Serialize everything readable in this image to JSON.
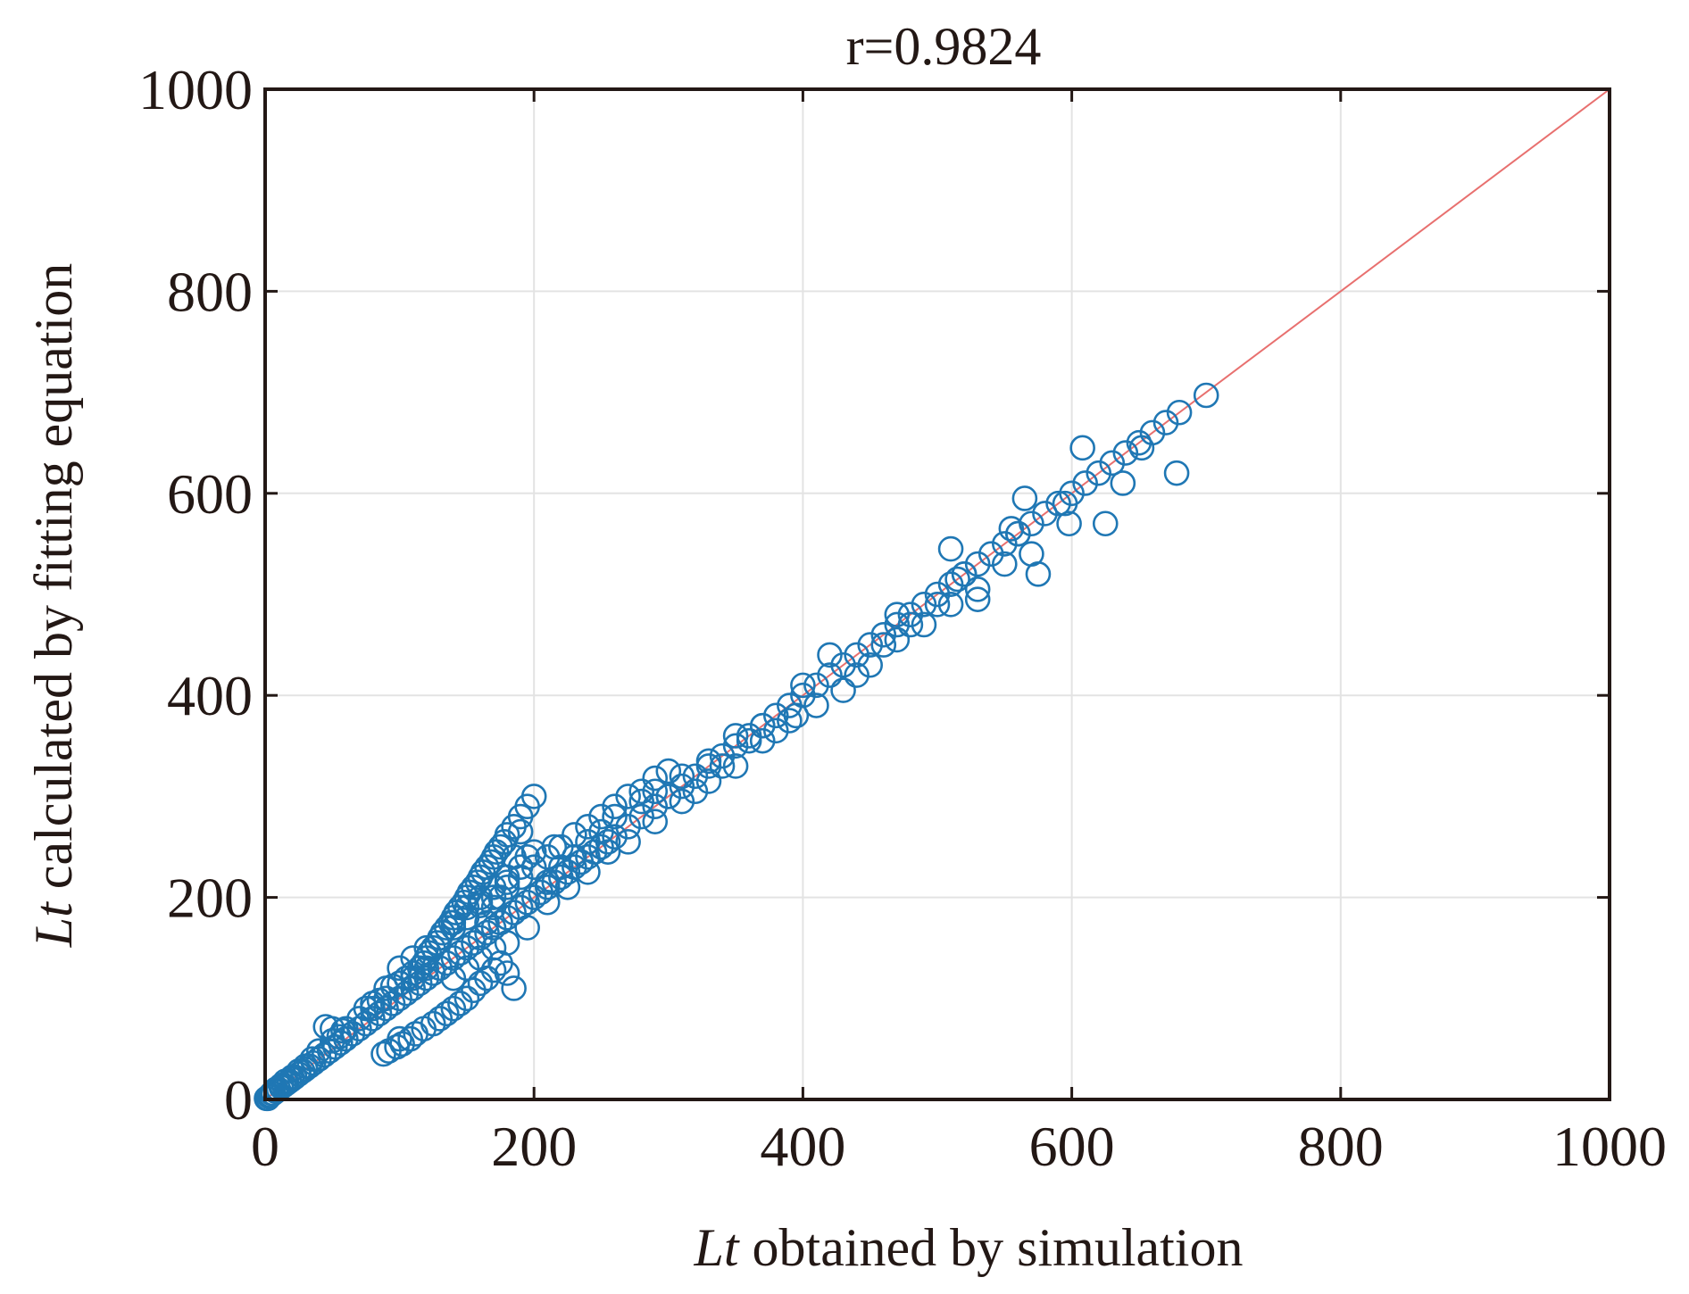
{
  "chart_data": {
    "type": "scatter",
    "title": "r=0.9824",
    "xlabel_var": "Lt",
    "xlabel_text": " obtained by simulation",
    "ylabel_var": "Lt",
    "ylabel_text": " calculated by fitting equation",
    "xlim": [
      0,
      1000
    ],
    "ylim": [
      0,
      1000
    ],
    "xticks": [
      "0",
      "200",
      "400",
      "600",
      "800",
      "1000"
    ],
    "yticks": [
      "0",
      "200",
      "400",
      "600",
      "800",
      "1000"
    ],
    "grid": true,
    "legend": "none",
    "colors": {
      "points": "#1f77b4",
      "fit_line": "#e8706f",
      "axes": "#231815"
    },
    "reference_line": {
      "x": [
        0,
        1000
      ],
      "y": [
        0,
        1000
      ]
    },
    "series": [
      {
        "marker": "open-circle",
        "x": [
          2,
          4,
          6,
          8,
          10,
          12,
          14,
          16,
          18,
          20,
          22,
          25,
          28,
          30,
          33,
          36,
          40,
          44,
          48,
          52,
          56,
          60,
          65,
          70,
          75,
          80,
          85,
          90,
          95,
          100,
          105,
          110,
          115,
          120,
          125,
          130,
          135,
          140,
          145,
          150,
          155,
          160,
          165,
          170,
          175,
          180,
          185,
          190,
          195,
          200,
          205,
          210,
          215,
          220,
          225,
          230,
          235,
          240,
          245,
          250,
          255,
          260,
          270,
          280,
          290,
          300,
          310,
          320,
          330,
          340,
          350,
          360,
          370,
          380,
          390,
          400,
          410,
          420,
          430,
          440,
          450,
          460,
          470,
          480,
          490,
          500,
          510,
          520,
          530,
          540,
          550,
          560,
          570,
          580,
          590,
          600,
          610,
          620,
          630,
          640,
          650,
          660,
          670,
          680,
          700,
          45,
          50,
          58,
          75,
          80,
          85,
          90,
          95,
          100,
          100,
          105,
          110,
          115,
          118,
          120,
          122,
          125,
          128,
          130,
          132,
          135,
          138,
          140,
          142,
          145,
          148,
          150,
          152,
          155,
          158,
          160,
          162,
          165,
          168,
          170,
          172,
          175,
          178,
          180,
          185,
          190,
          195,
          200,
          88,
          92,
          98,
          102,
          108,
          112,
          118,
          125,
          130,
          135,
          140,
          145,
          150,
          155,
          160,
          165,
          170,
          175,
          180,
          185,
          160,
          165,
          170,
          175,
          180,
          185,
          190,
          195,
          210,
          215,
          220,
          230,
          240,
          250,
          260,
          280,
          290,
          300,
          310,
          320,
          330,
          340,
          350,
          360,
          370,
          380,
          395,
          400,
          420,
          440,
          460,
          470,
          480,
          500,
          510,
          515,
          520,
          530,
          550,
          555,
          560,
          565,
          570,
          575,
          595,
          598,
          608,
          625,
          638,
          652,
          678,
          130,
          140,
          150,
          160,
          170,
          180,
          190,
          200,
          120,
          110,
          100,
          90,
          80,
          70,
          60,
          55,
          50,
          40,
          35,
          30,
          25,
          20,
          15,
          12,
          8,
          5,
          3,
          1,
          140,
          150,
          160,
          170,
          180,
          195,
          210,
          225,
          240,
          255,
          270,
          290,
          310,
          330,
          350,
          370,
          390,
          410,
          430,
          450,
          470,
          490,
          510,
          530,
          100,
          110,
          120,
          130,
          140,
          150,
          160,
          170,
          180,
          190,
          200,
          210,
          220,
          230,
          240,
          250,
          260,
          270,
          280,
          290,
          300
        ],
        "y": [
          1,
          4,
          6,
          8,
          10,
          12,
          14,
          16,
          18,
          20,
          22,
          25,
          28,
          30,
          33,
          36,
          40,
          44,
          48,
          52,
          56,
          60,
          65,
          70,
          75,
          80,
          85,
          90,
          95,
          100,
          105,
          110,
          115,
          120,
          125,
          130,
          135,
          140,
          145,
          150,
          155,
          160,
          165,
          170,
          175,
          180,
          185,
          190,
          195,
          200,
          205,
          210,
          215,
          220,
          225,
          230,
          235,
          240,
          245,
          250,
          255,
          260,
          270,
          280,
          290,
          300,
          310,
          320,
          330,
          340,
          350,
          360,
          370,
          380,
          390,
          400,
          410,
          420,
          430,
          440,
          450,
          460,
          470,
          480,
          490,
          500,
          510,
          520,
          530,
          540,
          550,
          560,
          570,
          580,
          590,
          600,
          610,
          620,
          630,
          640,
          650,
          660,
          670,
          680,
          697,
          72,
          70,
          68,
          90,
          95,
          98,
          110,
          112,
          115,
          60,
          120,
          125,
          130,
          135,
          140,
          145,
          150,
          155,
          160,
          165,
          170,
          175,
          180,
          185,
          190,
          195,
          200,
          205,
          210,
          215,
          220,
          225,
          230,
          235,
          240,
          245,
          250,
          255,
          262,
          270,
          280,
          290,
          300,
          45,
          48,
          52,
          55,
          60,
          65,
          70,
          75,
          80,
          85,
          90,
          95,
          100,
          108,
          115,
          120,
          128,
          135,
          125,
          110,
          195,
          175,
          190,
          200,
          215,
          240,
          265,
          240,
          215,
          250,
          230,
          240,
          255,
          265,
          280,
          295,
          305,
          300,
          320,
          305,
          335,
          330,
          360,
          355,
          370,
          365,
          380,
          410,
          440,
          420,
          450,
          480,
          470,
          490,
          545,
          515,
          520,
          495,
          530,
          565,
          560,
          595,
          540,
          520,
          590,
          570,
          645,
          570,
          610,
          645,
          620,
          160,
          175,
          190,
          200,
          210,
          220,
          230,
          245,
          130,
          120,
          115,
          100,
          90,
          80,
          70,
          62,
          58,
          48,
          40,
          33,
          28,
          22,
          18,
          14,
          10,
          6,
          3,
          1,
          120,
          130,
          140,
          150,
          155,
          170,
          195,
          210,
          225,
          245,
          255,
          275,
          295,
          315,
          330,
          355,
          375,
          390,
          405,
          430,
          455,
          470,
          490,
          505,
          130,
          140,
          150,
          160,
          170,
          180,
          192,
          200,
          210,
          220,
          230,
          240,
          250,
          262,
          270,
          280,
          290,
          300,
          305,
          318,
          325
        ]
      }
    ]
  }
}
